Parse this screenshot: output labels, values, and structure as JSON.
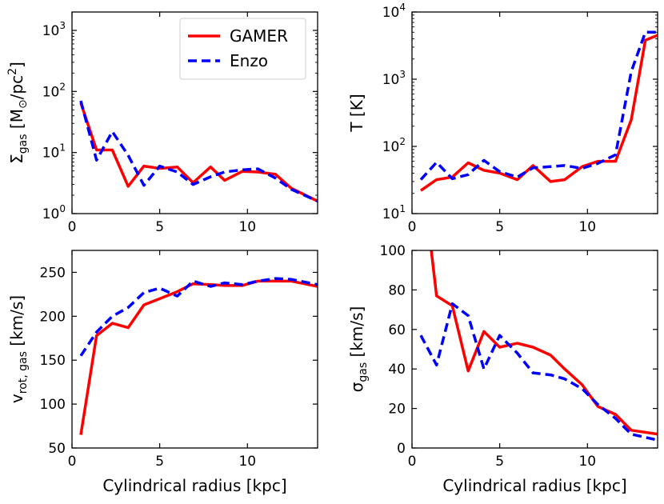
{
  "legend": {
    "gamer_label": "GAMER",
    "enzo_label": "Enzo"
  },
  "colors": {
    "gamer": "#ff0000",
    "enzo": "#0000ff",
    "axis": "#000000"
  },
  "chart_data": [
    {
      "id": "surface-density",
      "type": "line",
      "yscale": "log",
      "xlim": [
        0,
        14
      ],
      "ylim": [
        1,
        2000
      ],
      "xticks": [
        {
          "v": 0,
          "label": "0"
        },
        {
          "v": 5,
          "label": "5"
        },
        {
          "v": 10,
          "label": "10"
        }
      ],
      "yticks": [
        {
          "v": 1,
          "label": "10",
          "sup": "0"
        },
        {
          "v": 10,
          "label": "10",
          "sup": "1"
        },
        {
          "v": 100,
          "label": "10",
          "sup": "2"
        },
        {
          "v": 1000,
          "label": "10",
          "sup": "3"
        }
      ],
      "ylabel": {
        "main": "Σ",
        "sub": "gas",
        "rest": " [M",
        "sub2": "⊙",
        "rest2": "/pc",
        "sup": "2",
        "end": "]"
      },
      "xlabel": "",
      "legend": "top-right",
      "series": [
        {
          "name": "GAMER",
          "x": [
            0.5,
            1.4,
            2.3,
            3.2,
            4.1,
            5.0,
            6.0,
            6.9,
            7.9,
            8.7,
            9.7,
            10.6,
            11.6,
            12.5,
            14.0
          ],
          "y": [
            65,
            11,
            11,
            2.8,
            6.0,
            5.5,
            5.8,
            3.2,
            5.8,
            3.5,
            4.9,
            4.8,
            4.4,
            2.6,
            1.6
          ]
        },
        {
          "name": "Enzo",
          "x": [
            0.5,
            1.4,
            2.3,
            3.2,
            4.1,
            5.0,
            6.0,
            6.9,
            7.9,
            8.7,
            9.7,
            10.6,
            11.6,
            12.5,
            14.0
          ],
          "y": [
            70,
            7.5,
            22,
            9.0,
            2.9,
            6.0,
            4.8,
            3.0,
            4.0,
            4.8,
            5.2,
            5.4,
            3.8,
            2.5,
            1.6
          ]
        }
      ]
    },
    {
      "id": "temperature",
      "type": "line",
      "yscale": "log",
      "xlim": [
        0,
        14
      ],
      "ylim": [
        10,
        10000
      ],
      "xticks": [
        {
          "v": 0,
          "label": "0"
        },
        {
          "v": 5,
          "label": "5"
        },
        {
          "v": 10,
          "label": "10"
        }
      ],
      "yticks": [
        {
          "v": 10,
          "label": "10",
          "sup": "1"
        },
        {
          "v": 100,
          "label": "10",
          "sup": "2"
        },
        {
          "v": 1000,
          "label": "10",
          "sup": "3"
        },
        {
          "v": 10000,
          "label": "10",
          "sup": "4"
        }
      ],
      "ylabel": {
        "main": "T [K]"
      },
      "xlabel": "",
      "series": [
        {
          "name": "GAMER",
          "x": [
            0.5,
            1.4,
            2.3,
            3.2,
            4.1,
            5.0,
            6.0,
            6.9,
            7.9,
            8.7,
            9.7,
            10.6,
            11.6,
            12.5,
            13.3,
            14.0
          ],
          "y": [
            22,
            32,
            35,
            57,
            44,
            40,
            32,
            52,
            30,
            32,
            50,
            60,
            60,
            250,
            3800,
            4500
          ]
        },
        {
          "name": "Enzo",
          "x": [
            0.5,
            1.4,
            2.3,
            3.2,
            4.1,
            5.0,
            6.0,
            6.9,
            7.9,
            8.7,
            9.7,
            10.6,
            11.6,
            12.5,
            13.3,
            14.0
          ],
          "y": [
            32,
            58,
            33,
            38,
            62,
            42,
            35,
            48,
            50,
            52,
            47,
            56,
            75,
            1300,
            5000,
            5000
          ]
        }
      ]
    },
    {
      "id": "rotation-velocity",
      "type": "line",
      "yscale": "linear",
      "xlim": [
        0,
        14
      ],
      "ylim": [
        50,
        275
      ],
      "xticks": [
        {
          "v": 0,
          "label": "0"
        },
        {
          "v": 5,
          "label": "5"
        },
        {
          "v": 10,
          "label": "10"
        }
      ],
      "yticks": [
        {
          "v": 50,
          "label": "50"
        },
        {
          "v": 100,
          "label": "100"
        },
        {
          "v": 150,
          "label": "150"
        },
        {
          "v": 200,
          "label": "200"
        },
        {
          "v": 250,
          "label": "250"
        }
      ],
      "ylabel": {
        "main": "v",
        "sub": "rot, gas",
        "rest": " [km/s]"
      },
      "xlabel": "Cylindrical radius [kpc]",
      "series": [
        {
          "name": "GAMER",
          "x": [
            0.5,
            1.4,
            2.3,
            3.2,
            4.1,
            5.0,
            6.0,
            6.9,
            7.9,
            8.7,
            9.7,
            10.6,
            11.6,
            12.5,
            14.0
          ],
          "y": [
            65,
            178,
            192,
            187,
            213,
            220,
            228,
            237,
            236,
            235,
            235,
            240,
            240,
            240,
            234
          ]
        },
        {
          "name": "Enzo",
          "x": [
            0.5,
            1.4,
            2.3,
            3.2,
            4.1,
            5.0,
            6.0,
            6.9,
            7.9,
            8.7,
            9.7,
            10.6,
            11.6,
            12.5,
            14.0
          ],
          "y": [
            155,
            182,
            200,
            210,
            227,
            232,
            223,
            240,
            234,
            238,
            236,
            240,
            243,
            242,
            236
          ]
        }
      ]
    },
    {
      "id": "velocity-dispersion",
      "type": "line",
      "yscale": "linear",
      "xlim": [
        0,
        14
      ],
      "ylim": [
        0,
        100
      ],
      "xticks": [
        {
          "v": 0,
          "label": "0"
        },
        {
          "v": 5,
          "label": "5"
        },
        {
          "v": 10,
          "label": "10"
        }
      ],
      "yticks": [
        {
          "v": 0,
          "label": "0"
        },
        {
          "v": 20,
          "label": "20"
        },
        {
          "v": 40,
          "label": "40"
        },
        {
          "v": 60,
          "label": "60"
        },
        {
          "v": 80,
          "label": "80"
        },
        {
          "v": 100,
          "label": "100"
        }
      ],
      "ylabel": {
        "main": "σ",
        "sub": "gas",
        "rest": " [km/s]"
      },
      "xlabel": "Cylindrical radius [kpc]",
      "series": [
        {
          "name": "GAMER",
          "x": [
            1.1,
            1.4,
            2.3,
            3.2,
            4.1,
            5.0,
            6.0,
            6.9,
            7.9,
            8.7,
            9.7,
            10.6,
            11.6,
            12.5,
            14.0
          ],
          "y": [
            100,
            77,
            72,
            39,
            59,
            51,
            53,
            51,
            47,
            40,
            32,
            21,
            17,
            9,
            7
          ]
        },
        {
          "name": "Enzo",
          "x": [
            0.5,
            1.4,
            2.3,
            3.2,
            4.1,
            5.0,
            6.0,
            6.9,
            7.9,
            8.7,
            9.7,
            10.6,
            11.6,
            12.5,
            14.0
          ],
          "y": [
            57,
            42,
            73,
            67,
            40,
            57,
            48,
            38,
            37,
            35,
            30,
            22,
            15,
            7,
            4
          ]
        }
      ]
    }
  ]
}
